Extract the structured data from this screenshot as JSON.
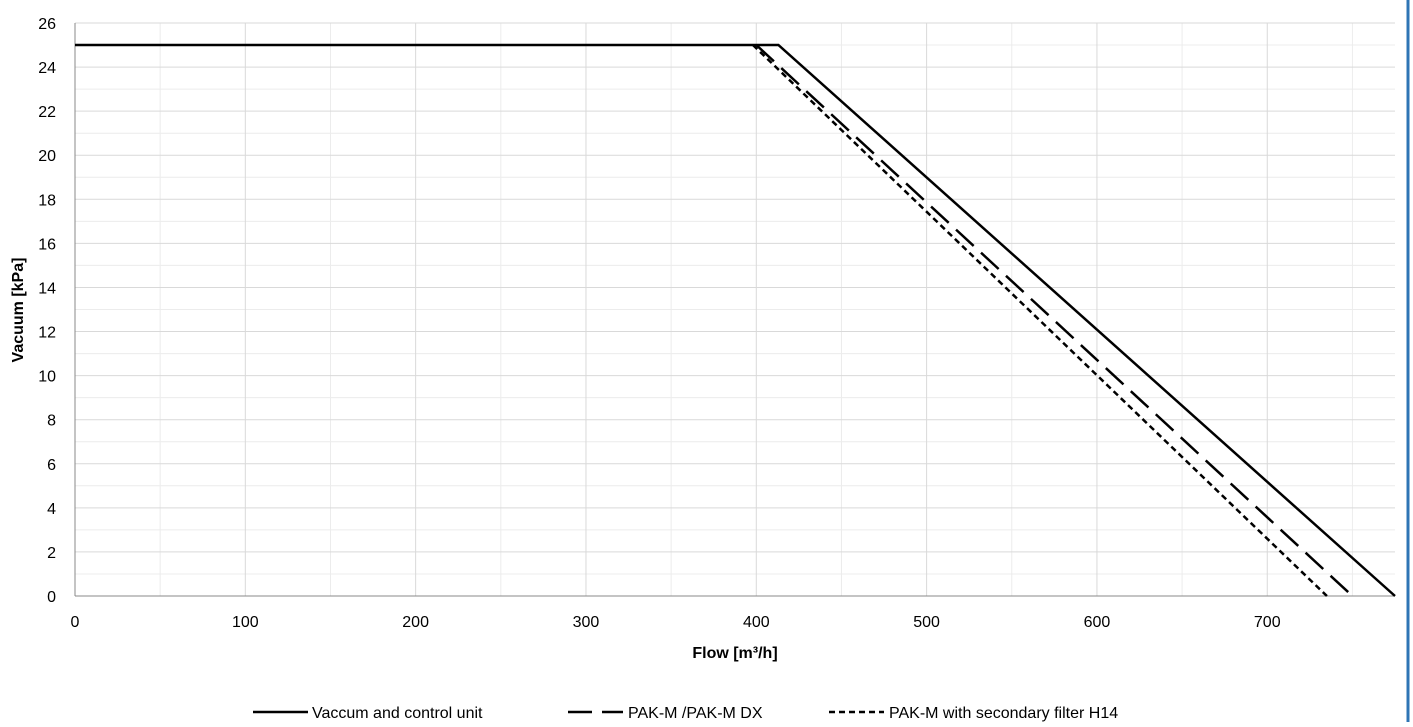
{
  "colors": {
    "series": "#000000",
    "grid_major": "#d9d9d9",
    "grid_minor": "#ececec",
    "axis": "#888888",
    "frame_accent": "#2f75b5"
  },
  "chart_data": {
    "type": "line",
    "title": "",
    "xlabel": "Flow [m³/h]",
    "ylabel": "Vacuum [kPa]",
    "xlim": [
      0,
      775
    ],
    "ylim": [
      0,
      26
    ],
    "xticks": [
      0,
      100,
      200,
      300,
      400,
      500,
      600,
      700
    ],
    "yticks": [
      0,
      2,
      4,
      6,
      8,
      10,
      12,
      14,
      16,
      18,
      20,
      22,
      24,
      26
    ],
    "grid": true,
    "minor_grid": true,
    "legend_position": "bottom",
    "series": [
      {
        "name": "Vaccum and control unit",
        "line_style": "solid",
        "color": "#000000",
        "points": [
          [
            0,
            25
          ],
          [
            413,
            25
          ],
          [
            775,
            0
          ]
        ]
      },
      {
        "name": "PAK-M /PAK-M DX",
        "line_style": "long-dash",
        "color": "#000000",
        "points": [
          [
            400,
            25
          ],
          [
            750,
            0
          ]
        ]
      },
      {
        "name": "PAK-M with secondary filter H14",
        "line_style": "short-dash",
        "color": "#000000",
        "points": [
          [
            398,
            25
          ],
          [
            735,
            0
          ]
        ]
      }
    ]
  }
}
